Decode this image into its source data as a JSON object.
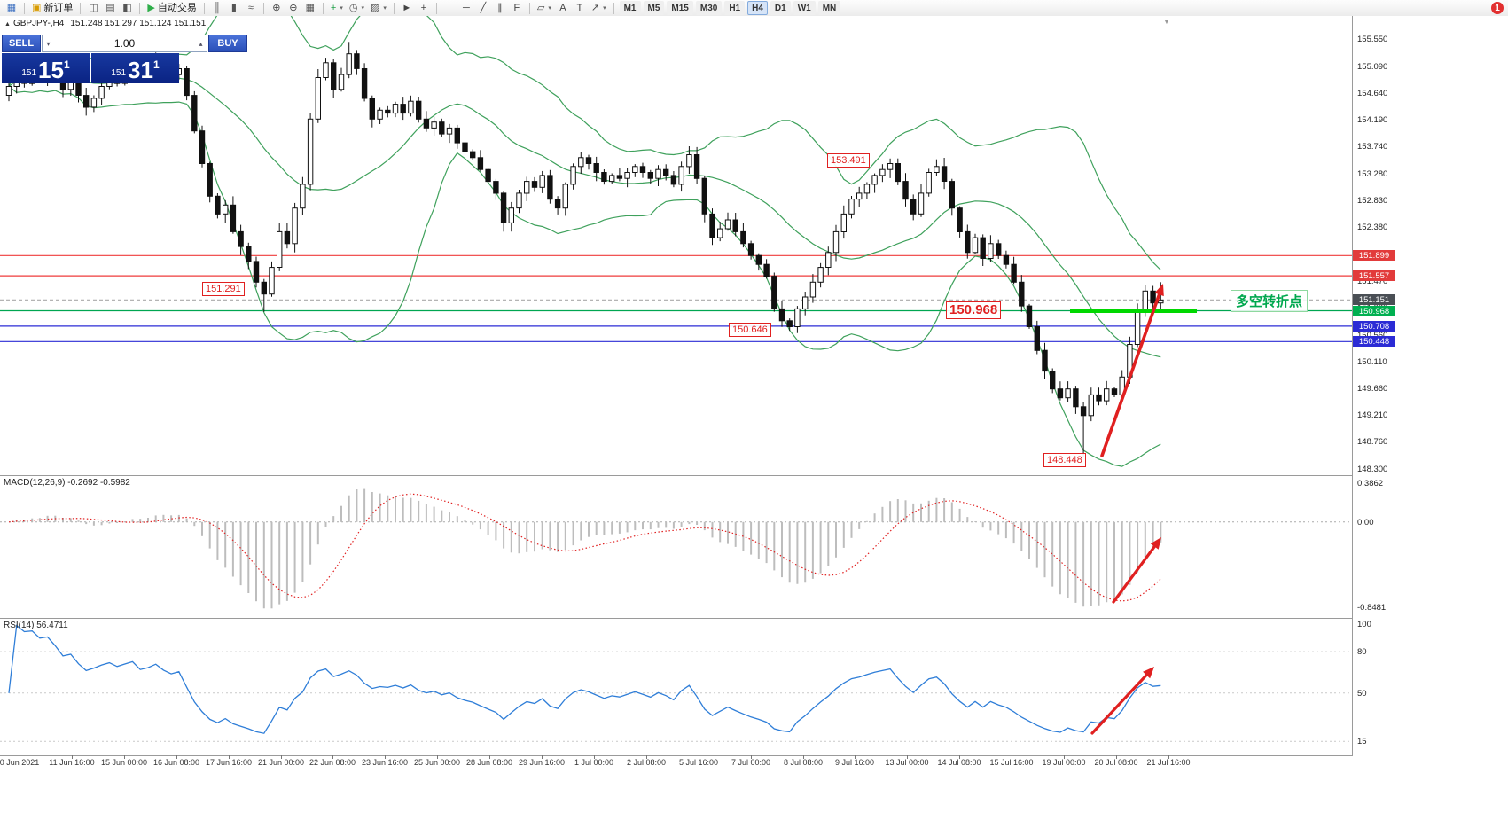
{
  "toolbar": {
    "groups": [
      [
        {
          "name": "new-chart-icon",
          "glyph": "▦",
          "color": "#3a6ec0"
        }
      ],
      [
        {
          "name": "new-order-button",
          "glyph": "▣",
          "color": "#d89b00",
          "label": "新订单"
        }
      ],
      [
        {
          "name": "market-watch-icon",
          "glyph": "◫",
          "color": "#555"
        },
        {
          "name": "data-window-icon",
          "glyph": "▤",
          "color": "#555"
        },
        {
          "name": "navigator-icon",
          "glyph": "◧",
          "color": "#555"
        }
      ],
      [
        {
          "name": "autotrading-button",
          "glyph": "▶",
          "color": "#2fae4a",
          "label": "自动交易"
        }
      ],
      [
        {
          "name": "bar-chart-icon",
          "glyph": "║",
          "color": "#555"
        },
        {
          "name": "candlestick-chart-icon",
          "glyph": "▮",
          "color": "#555"
        },
        {
          "name": "line-chart-icon",
          "glyph": "≈",
          "color": "#555"
        }
      ],
      [
        {
          "name": "zoom-in-icon",
          "glyph": "⊕",
          "color": "#444"
        },
        {
          "name": "zoom-out-icon",
          "glyph": "⊖",
          "color": "#444"
        },
        {
          "name": "tile-windows-icon",
          "glyph": "▦",
          "color": "#555"
        }
      ],
      [
        {
          "name": "indicators-icon",
          "glyph": "+",
          "color": "#1fa048",
          "caret": true
        },
        {
          "name": "periods-icon",
          "glyph": "◷",
          "color": "#555",
          "caret": true
        },
        {
          "name": "templates-icon",
          "glyph": "▨",
          "color": "#555",
          "caret": true
        }
      ],
      [
        {
          "name": "cursor-icon",
          "glyph": "►",
          "color": "#444"
        },
        {
          "name": "crosshair-icon",
          "glyph": "+",
          "color": "#444"
        }
      ],
      [
        {
          "name": "vertical-line-icon",
          "glyph": "│",
          "color": "#444"
        },
        {
          "name": "horizontal-line-icon",
          "glyph": "─",
          "color": "#444"
        },
        {
          "name": "trendline-icon",
          "glyph": "╱",
          "color": "#444"
        },
        {
          "name": "channel-icon",
          "glyph": "∥",
          "color": "#444"
        },
        {
          "name": "fibonacci-icon",
          "glyph": "F",
          "color": "#444"
        }
      ],
      [
        {
          "name": "shapes-icon",
          "glyph": "▱",
          "color": "#444",
          "caret": true
        },
        {
          "name": "text-icon",
          "glyph": "A",
          "color": "#444"
        },
        {
          "name": "label-icon",
          "glyph": "T",
          "color": "#444"
        },
        {
          "name": "arrows-icon",
          "glyph": "↗",
          "color": "#444",
          "caret": true
        }
      ]
    ],
    "timeframes": [
      "M1",
      "M5",
      "M15",
      "M30",
      "H1",
      "H4",
      "D1",
      "W1",
      "MN"
    ],
    "active_timeframe": "H4",
    "notification_badge": "1"
  },
  "chart": {
    "symbol_marker": "▲",
    "symbol_line": "GBPJPY-,H4",
    "ohlc_line": "151.248 151.297 151.124 151.151",
    "trade_panel": {
      "sell_label": "SELL",
      "buy_label": "BUY",
      "lot": "1.00",
      "spinner_down": "▾",
      "spinner_up": "▴",
      "sell_small": "151",
      "sell_big": "15",
      "sell_sup": "1",
      "buy_small": "151",
      "buy_big": "31",
      "buy_sup": "1"
    },
    "price_axis": {
      "ticks": [
        "155.550",
        "155.090",
        "154.640",
        "154.190",
        "153.740",
        "153.280",
        "152.830",
        "152.380",
        "151.930",
        "151.470",
        "151.020",
        "150.560",
        "150.110",
        "149.660",
        "149.210",
        "148.760",
        "148.300"
      ],
      "tags": [
        {
          "text": "151.899",
          "bg": "#e23b3b"
        },
        {
          "text": "151.557",
          "bg": "#e23b3b"
        },
        {
          "text": "151.151",
          "bg": "#4a4f55"
        },
        {
          "text": "150.968",
          "bg": "#00b050"
        },
        {
          "text": "150.708",
          "bg": "#2b2bd5"
        },
        {
          "text": "150.448",
          "bg": "#2b2bd5"
        }
      ]
    },
    "hlines": [
      {
        "price": 151.899,
        "color": "#ef3b3b",
        "style": "solid"
      },
      {
        "price": 151.557,
        "color": "#ef3b3b",
        "style": "solid"
      },
      {
        "price": 151.151,
        "color": "#aaaaaa",
        "style": "dash"
      },
      {
        "price": 150.968,
        "color": "#00a651",
        "style": "solid"
      },
      {
        "price": 150.708,
        "color": "#2b2bd5",
        "style": "solid"
      },
      {
        "price": 150.448,
        "color": "#2b2bd5",
        "style": "solid"
      }
    ],
    "price_labels": [
      {
        "text": "153.491"
      },
      {
        "text": "151.291"
      },
      {
        "text": "150.968"
      },
      {
        "text": "150.646"
      },
      {
        "text": "148.448"
      }
    ],
    "annotation": {
      "text": "多空转折点",
      "color": "#00a84e"
    },
    "green_segment": {
      "price": 150.968,
      "color": "#00d800"
    },
    "shift_marker": "▼",
    "time_axis": [
      "0 Jun 2021",
      "11 Jun 16:00",
      "15 Jun 00:00",
      "16 Jun 08:00",
      "17 Jun 16:00",
      "21 Jun 00:00",
      "22 Jun 08:00",
      "23 Jun 16:00",
      "25 Jun 00:00",
      "28 Jun 08:00",
      "29 Jun 16:00",
      "1 Jul 00:00",
      "2 Jul 08:00",
      "5 Jul 16:00",
      "7 Jul 00:00",
      "8 Jul 08:00",
      "9 Jul 16:00",
      "13 Jul 00:00",
      "14 Jul 08:00",
      "15 Jul 16:00",
      "19 Jul 00:00",
      "20 Jul 08:00",
      "21 Jul 16:00"
    ]
  },
  "indicators": {
    "macd_label": "MACD(12,26,9) -0.2692 -0.5982",
    "rsi_label": "RSI(14) 56.4711",
    "macd_scale": {
      "top": "0.3862",
      "zero": "0.00",
      "bottom": "-0.8481"
    },
    "rsi_levels": [
      "100",
      "80",
      "50",
      "15"
    ]
  },
  "chart_data": {
    "type": "candlestick",
    "symbol": "GBPJPY",
    "timeframe": "H4",
    "price_range": {
      "min": 148.3,
      "max": 155.55
    },
    "first_open": 154.6,
    "closes": [
      154.75,
      154.95,
      154.8,
      155.05,
      154.9,
      155.15,
      154.95,
      154.7,
      154.85,
      154.6,
      154.4,
      154.55,
      154.75,
      154.9,
      154.8,
      154.95,
      155.1,
      154.9,
      155.0,
      155.2,
      155.05,
      154.95,
      155.05,
      154.6,
      154.0,
      153.45,
      152.9,
      152.6,
      152.75,
      152.3,
      152.05,
      151.8,
      151.45,
      151.25,
      151.7,
      152.3,
      152.1,
      152.7,
      153.1,
      154.2,
      154.9,
      155.15,
      154.7,
      154.95,
      155.3,
      155.05,
      154.55,
      154.2,
      154.35,
      154.3,
      154.45,
      154.3,
      154.5,
      154.2,
      154.05,
      154.15,
      153.95,
      154.05,
      153.8,
      153.65,
      153.55,
      153.35,
      153.15,
      152.95,
      152.45,
      152.7,
      152.95,
      153.15,
      153.05,
      153.25,
      152.85,
      152.7,
      153.1,
      153.4,
      153.55,
      153.45,
      153.3,
      153.15,
      153.25,
      153.2,
      153.3,
      153.4,
      153.3,
      153.2,
      153.35,
      153.25,
      153.1,
      153.4,
      153.6,
      153.2,
      152.6,
      152.2,
      152.35,
      152.5,
      152.3,
      152.1,
      151.9,
      151.75,
      151.55,
      151.0,
      150.8,
      150.7,
      151.0,
      151.2,
      151.45,
      151.7,
      151.95,
      152.3,
      152.6,
      152.85,
      152.95,
      153.1,
      153.25,
      153.35,
      153.45,
      153.15,
      152.85,
      152.6,
      152.95,
      153.3,
      153.4,
      153.15,
      152.7,
      152.3,
      151.95,
      152.2,
      151.85,
      152.1,
      151.9,
      151.75,
      151.45,
      151.05,
      150.7,
      150.3,
      149.95,
      149.65,
      149.5,
      149.65,
      149.35,
      149.2,
      149.55,
      149.45,
      149.65,
      149.55,
      149.85,
      150.4,
      150.95,
      151.3,
      151.1,
      151.15
    ],
    "extra_wicks": {
      "33": {
        "low": 150.95
      },
      "44": {
        "high": 155.5
      },
      "101": {
        "low": 150.63
      },
      "139": {
        "low": 148.5
      },
      "149": {
        "high": 151.45
      }
    },
    "bollinger": {
      "period": 20,
      "deviation": 2,
      "color": "#3fa15c"
    },
    "macd": {
      "fast": 12,
      "slow": 26,
      "signal": 9
    },
    "rsi": {
      "period": 14
    }
  }
}
